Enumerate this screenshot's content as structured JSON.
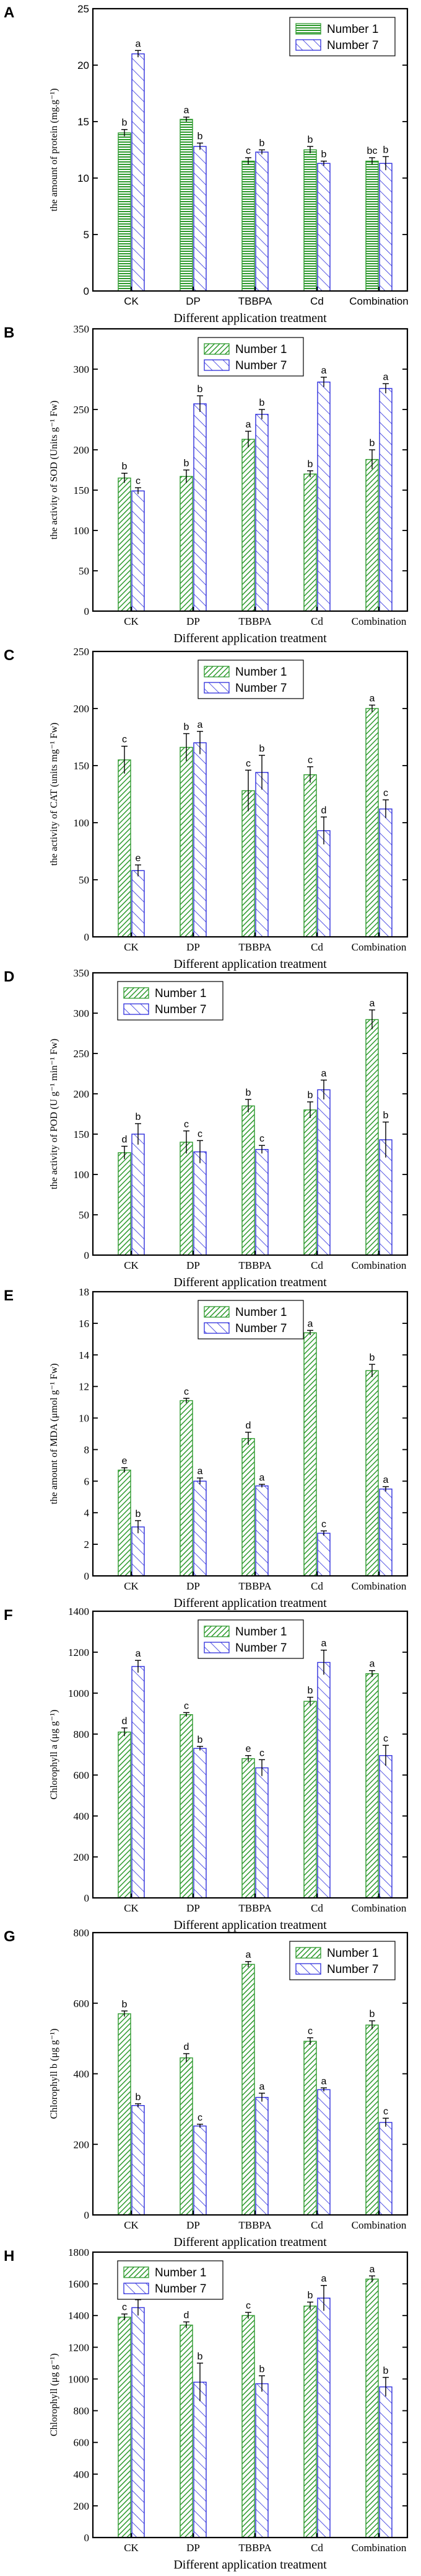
{
  "colors": {
    "series1": "#2e9a2e",
    "series2": "#2d2ddc"
  },
  "chart_data": [
    {
      "panel": "A",
      "type": "bar",
      "style": "sans",
      "categories": [
        "CK",
        "DP",
        "TBBPA",
        "Cd",
        "Combination"
      ],
      "series": [
        {
          "name": "Number 1",
          "values": [
            14,
            15.2,
            11.5,
            12.5,
            11.5
          ],
          "errors": [
            0.3,
            0.2,
            0.3,
            0.3,
            0.3
          ],
          "letters": [
            "b",
            "a",
            "c",
            "b",
            "bc"
          ]
        },
        {
          "name": "Number 7",
          "values": [
            21,
            12.8,
            12.3,
            11.3,
            11.3
          ],
          "errors": [
            0.3,
            0.3,
            0.2,
            0.2,
            0.6
          ],
          "letters": [
            "a",
            "b",
            "b",
            "b",
            "b"
          ]
        }
      ],
      "ylabel": "the amount of protein (mg.g⁻¹)",
      "xlabel": "Different application treatment",
      "ylim": [
        0,
        25
      ],
      "yticks": [
        "0",
        "5",
        "10",
        "15",
        "20",
        "25"
      ],
      "legend": "top-right"
    },
    {
      "panel": "B",
      "type": "bar",
      "style": "serif",
      "categories": [
        "CK",
        "DP",
        "TBBPA",
        "Cd",
        "Combination"
      ],
      "series": [
        {
          "name": "Number 1",
          "values": [
            165,
            167,
            213,
            170,
            188
          ],
          "errors": [
            6,
            8,
            10,
            4,
            12
          ],
          "letters": [
            "b",
            "b",
            "a",
            "b",
            "b"
          ]
        },
        {
          "name": "Number 7",
          "values": [
            149,
            257,
            244,
            284,
            276
          ],
          "errors": [
            4,
            10,
            6,
            6,
            6
          ],
          "letters": [
            "c",
            "b",
            "b",
            "a",
            "a"
          ]
        }
      ],
      "ylabel": "the activity of SOD (Units g⁻¹ Fw)",
      "xlabel": "Different application treatment",
      "ylim": [
        0,
        350
      ],
      "yticks": [
        "0",
        "50",
        "100",
        "150",
        "200",
        "250",
        "300",
        "350"
      ],
      "legend": "top-center"
    },
    {
      "panel": "C",
      "type": "bar",
      "style": "serif",
      "categories": [
        "CK",
        "DP",
        "TBBPA",
        "Cd",
        "Combination"
      ],
      "series": [
        {
          "name": "Number 1",
          "values": [
            155,
            166,
            128,
            142,
            200
          ],
          "errors": [
            12,
            12,
            18,
            7,
            3
          ],
          "letters": [
            "c",
            "b",
            "c",
            "c",
            "a"
          ]
        },
        {
          "name": "Number 7",
          "values": [
            58,
            170,
            144,
            93,
            112
          ],
          "errors": [
            5,
            10,
            15,
            12,
            8
          ],
          "letters": [
            "e",
            "a",
            "b",
            "d",
            "c"
          ]
        }
      ],
      "ylabel": "the activity of CAT (units mg⁻¹ Fw)",
      "xlabel": "Different application treatment",
      "ylim": [
        0,
        250
      ],
      "yticks": [
        "0",
        "50",
        "100",
        "150",
        "200",
        "250"
      ],
      "legend": "top-center"
    },
    {
      "panel": "D",
      "type": "bar",
      "style": "serif",
      "categories": [
        "CK",
        "DP",
        "TBBPA",
        "Cd",
        "Combination"
      ],
      "series": [
        {
          "name": "Number 1",
          "values": [
            127,
            140,
            185,
            180,
            292
          ],
          "errors": [
            8,
            14,
            8,
            10,
            12
          ],
          "letters": [
            "d",
            "c",
            "b",
            "b",
            "a"
          ]
        },
        {
          "name": "Number 7",
          "values": [
            150,
            128,
            131,
            205,
            143
          ],
          "errors": [
            13,
            14,
            5,
            12,
            22
          ],
          "letters": [
            "b",
            "c",
            "c",
            "a",
            "b"
          ]
        }
      ],
      "ylabel": "the activity of POD (U g⁻¹ min⁻¹ Fw)",
      "xlabel": "Different application treatment",
      "ylim": [
        0,
        350
      ],
      "yticks": [
        "0",
        "50",
        "100",
        "150",
        "200",
        "250",
        "300",
        "350"
      ],
      "legend": "top-left"
    },
    {
      "panel": "E",
      "type": "bar",
      "style": "serif",
      "categories": [
        "CK",
        "DP",
        "TBBPA",
        "Cd",
        "Combination"
      ],
      "series": [
        {
          "name": "Number 1",
          "values": [
            6.7,
            11.1,
            8.7,
            15.4,
            13.0
          ],
          "errors": [
            0.15,
            0.15,
            0.4,
            0.15,
            0.4
          ],
          "letters": [
            "e",
            "c",
            "d",
            "a",
            "b"
          ]
        },
        {
          "name": "Number 7",
          "values": [
            3.1,
            6.0,
            5.7,
            2.7,
            5.5
          ],
          "errors": [
            0.4,
            0.2,
            0.1,
            0.15,
            0.15
          ],
          "letters": [
            "b",
            "a",
            "a",
            "c",
            "a"
          ]
        }
      ],
      "ylabel": "the amount of MDA (μmol g⁻¹ Fw)",
      "xlabel": "Different application treatment",
      "ylim": [
        0,
        18
      ],
      "yticks": [
        "0",
        "2",
        "4",
        "6",
        "8",
        "10",
        "12",
        "14",
        "16",
        "18"
      ],
      "legend": "top-center"
    },
    {
      "panel": "F",
      "type": "bar",
      "style": "serif",
      "categories": [
        "CK",
        "DP",
        "TBBPA",
        "Cd",
        "Combination"
      ],
      "series": [
        {
          "name": "Number 1",
          "values": [
            810,
            895,
            680,
            960,
            1095
          ],
          "errors": [
            20,
            10,
            15,
            20,
            15
          ],
          "letters": [
            "d",
            "c",
            "e",
            "b",
            "a"
          ]
        },
        {
          "name": "Number 7",
          "values": [
            1130,
            730,
            635,
            1150,
            695
          ],
          "errors": [
            30,
            10,
            40,
            60,
            50
          ],
          "letters": [
            "a",
            "b",
            "c",
            "a",
            "c"
          ]
        }
      ],
      "ylabel": "Chlorophyll a (μg g⁻¹)",
      "xlabel": "Different application treatment",
      "ylim": [
        0,
        1400
      ],
      "yticks": [
        "0",
        "200",
        "400",
        "600",
        "800",
        "1000",
        "1200",
        "1400"
      ],
      "legend": "top-center"
    },
    {
      "panel": "G",
      "type": "bar",
      "style": "serif",
      "categories": [
        "CK",
        "DP",
        "TBBPA",
        "Cd",
        "Combination"
      ],
      "series": [
        {
          "name": "Number 1",
          "values": [
            570,
            445,
            710,
            492,
            538
          ],
          "errors": [
            8,
            12,
            8,
            10,
            12
          ],
          "letters": [
            "b",
            "d",
            "a",
            "c",
            "b"
          ]
        },
        {
          "name": "Number 7",
          "values": [
            310,
            252,
            333,
            355,
            262
          ],
          "errors": [
            5,
            5,
            12,
            5,
            12
          ],
          "letters": [
            "b",
            "c",
            "a",
            "a",
            "c"
          ]
        }
      ],
      "ylabel": "Chlorophyll b (μg g⁻¹)",
      "xlabel": "Different application treatment",
      "ylim": [
        0,
        800
      ],
      "yticks": [
        "0",
        "200",
        "400",
        "600",
        "800"
      ],
      "legend": "top-right"
    },
    {
      "panel": "H",
      "type": "bar",
      "style": "serif",
      "categories": [
        "CK",
        "DP",
        "TBBPA",
        "Cd",
        "Combination"
      ],
      "series": [
        {
          "name": "Number 1",
          "values": [
            1390,
            1340,
            1400,
            1460,
            1630
          ],
          "errors": [
            20,
            20,
            20,
            25,
            20
          ],
          "letters": [
            "c",
            "d",
            "c",
            "b",
            "a"
          ]
        },
        {
          "name": "Number 7",
          "values": [
            1450,
            980,
            970,
            1510,
            950
          ],
          "errors": [
            50,
            120,
            50,
            80,
            60
          ],
          "letters": [
            "a",
            "b",
            "b",
            "a",
            "b"
          ]
        }
      ],
      "ylabel": "Chlorophyll (μg g⁻¹)",
      "xlabel": "Different application treatment",
      "ylim": [
        0,
        1800
      ],
      "yticks": [
        "0",
        "200",
        "400",
        "600",
        "800",
        "1000",
        "1200",
        "1400",
        "1600",
        "1800"
      ],
      "legend": "top-left"
    }
  ]
}
